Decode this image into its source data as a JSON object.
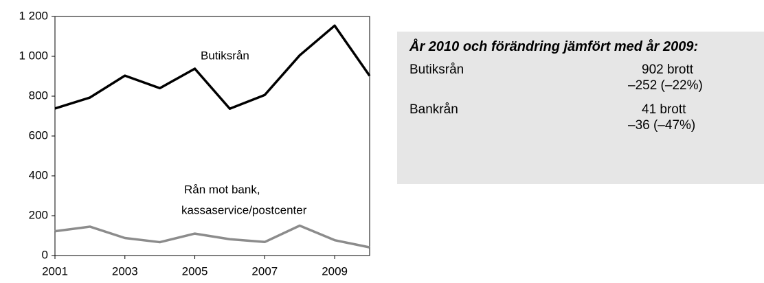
{
  "chart_data": {
    "type": "line",
    "x": [
      2001,
      2002,
      2003,
      2004,
      2005,
      2006,
      2007,
      2008,
      2009,
      2010
    ],
    "xlim": [
      2001,
      2010
    ],
    "xticks": [
      2001,
      2003,
      2005,
      2007,
      2009
    ],
    "ylim": [
      0,
      1200
    ],
    "yticks": [
      0,
      200,
      400,
      600,
      800,
      {
        "value": 1000,
        "label": "1 000"
      },
      {
        "value": 1200,
        "label": "1 200"
      }
    ],
    "series": [
      {
        "label_lines": [
          "Butiksrån"
        ],
        "color": "#000000",
        "values": [
          738,
          793,
          903,
          840,
          938,
          737,
          806,
          1005,
          1154,
          902
        ]
      },
      {
        "label_lines": [
          "Rån mot bank,",
          "kassaservice/postcenter"
        ],
        "color": "#8c8c8c",
        "values": [
          122,
          145,
          88,
          67,
          110,
          82,
          68,
          150,
          77,
          41
        ]
      }
    ]
  },
  "summary": {
    "title": "År 2010 och förändring jämfört med år 2009:",
    "rows": [
      {
        "label": "Butiksrån",
        "lines": [
          "902 brott",
          "–252 (–22%)"
        ]
      },
      {
        "label": "Bankrån",
        "lines": [
          "41 brott",
          "–36 (–47%)"
        ]
      }
    ]
  }
}
